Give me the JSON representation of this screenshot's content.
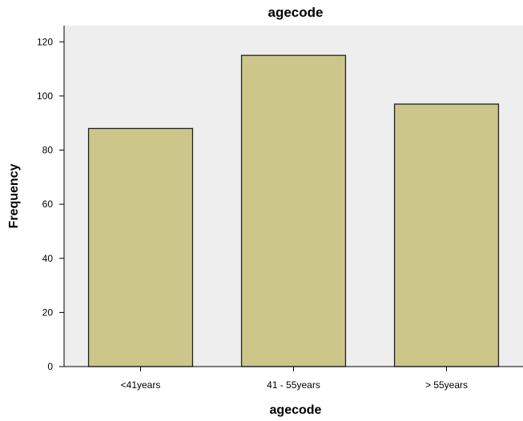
{
  "chart_data": {
    "type": "bar",
    "title": "agecode",
    "xlabel": "agecode",
    "ylabel": "Frequency",
    "categories": [
      "<41years",
      "41 - 55years",
      "> 55years"
    ],
    "values": [
      88,
      115,
      97
    ],
    "ylim": [
      0,
      126
    ],
    "yticks": [
      0,
      20,
      40,
      60,
      80,
      100,
      120
    ],
    "grid": false,
    "colors": {
      "bar_fill": "#cdc68a",
      "bar_stroke": "#222222",
      "plot_background": "#eeeeee",
      "axis": "#000000"
    }
  }
}
